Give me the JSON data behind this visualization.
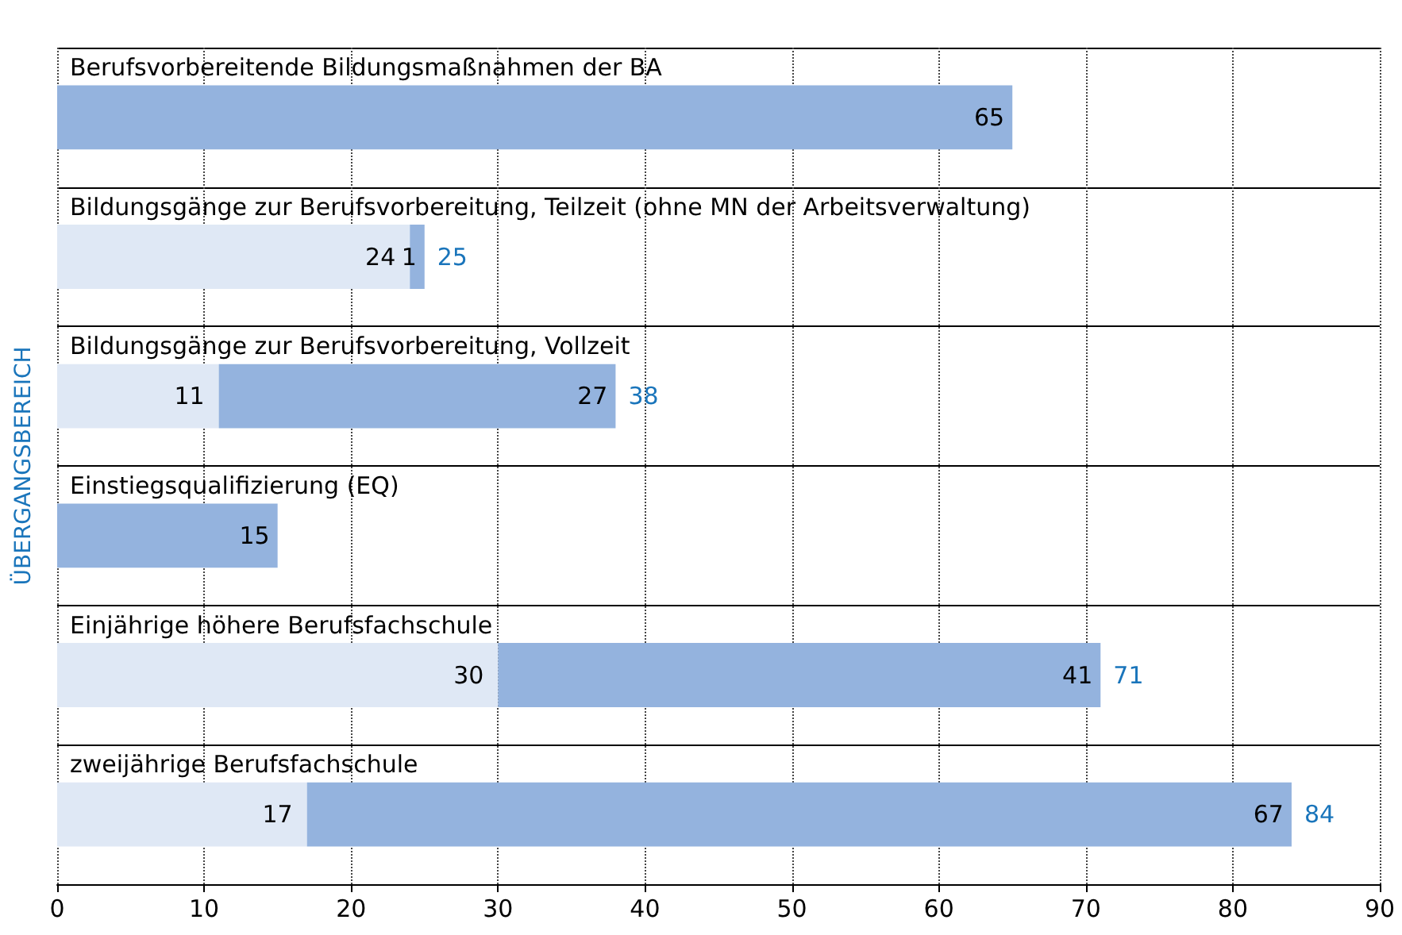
{
  "chart_data": {
    "type": "bar",
    "orientation": "horizontal",
    "stacked": true,
    "ylabel": "ÜBERGANGSBEREICH",
    "categories": [
      "Berufsvorbereitende Bildungsmaßnahmen der BA",
      "Bildungsgänge zur Berufsvorbereitung, Teilzeit (ohne MN der Arbeitsverwaltung)",
      "Bildungsgänge zur Berufsvorbereitung, Vollzeit",
      "Einstiegsqualifizierung (EQ)",
      "Einjährige höhere Berufsfachschule",
      "zweijährige Berufsfachschule"
    ],
    "series": [
      {
        "color": "#dfe8f5",
        "values": [
          null,
          24,
          11,
          null,
          30,
          17
        ]
      },
      {
        "color": "#94b3de",
        "values": [
          65,
          1,
          27,
          15,
          41,
          67
        ]
      }
    ],
    "totals": [
      null,
      "25",
      "38",
      null,
      "71",
      "84"
    ],
    "data_labels": true,
    "grid": true,
    "xlim": [
      0,
      90
    ],
    "xticks": [
      0,
      10,
      20,
      30,
      40,
      50,
      60,
      70,
      80,
      90
    ]
  }
}
